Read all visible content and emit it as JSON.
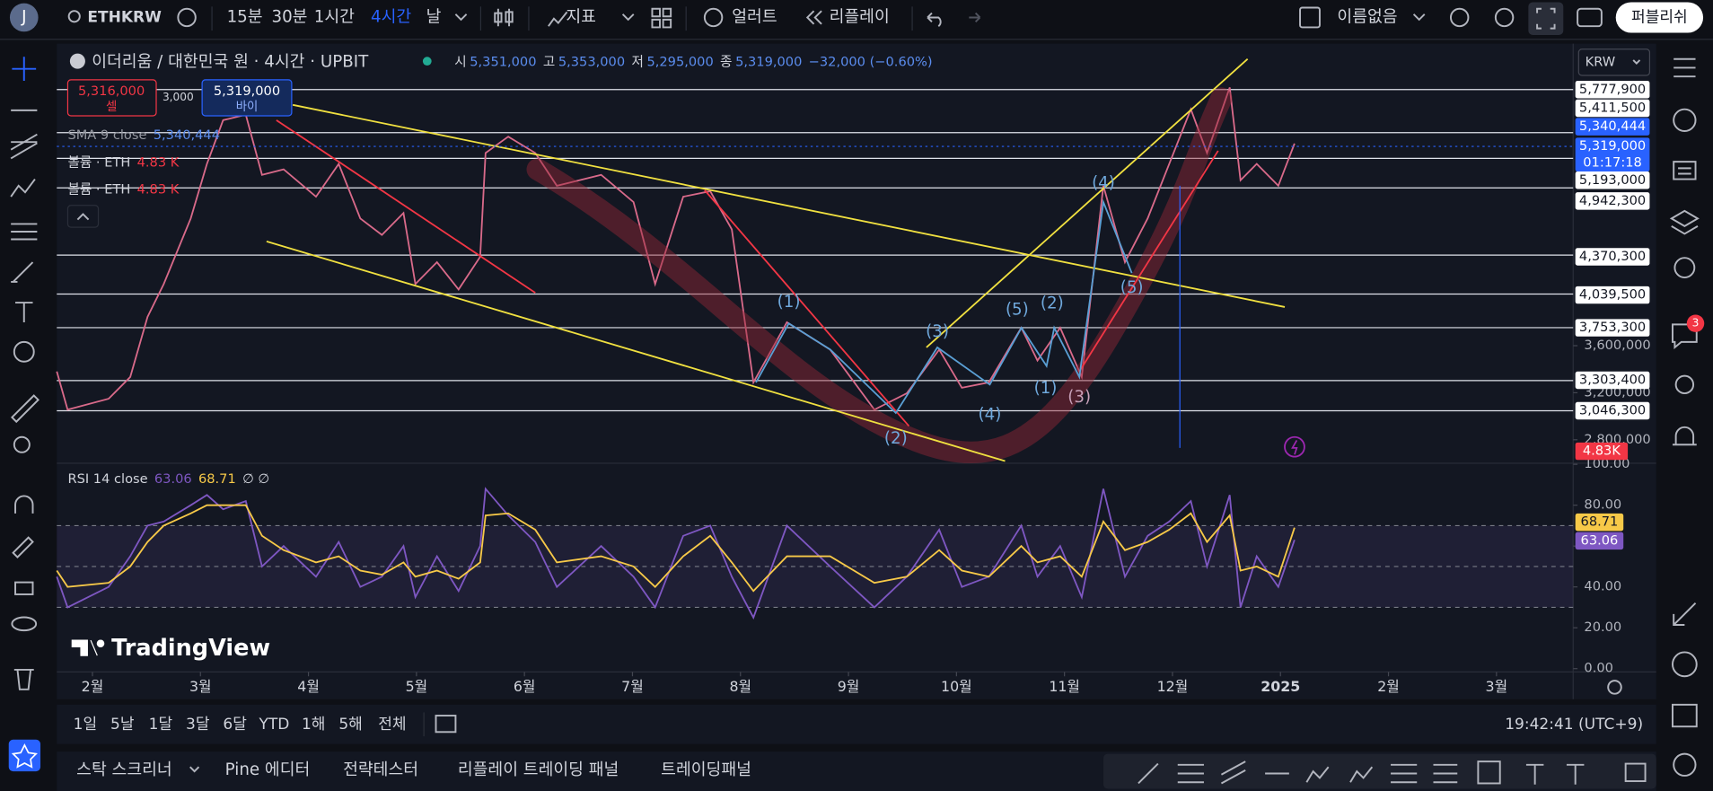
{
  "top_bar": {
    "avatar": "J",
    "symbol": "ETHKRW",
    "intervals": [
      "15분",
      "30분",
      "1시간",
      "4시간",
      "날"
    ],
    "indicators": "지표",
    "alerts": "얼러트",
    "replay": "리플레이",
    "layout_name": "이름없음",
    "publish": "퍼블리쉬"
  },
  "chart_header": {
    "title": "이더리움 / 대한민국 원 · 4시간 · UPBIT",
    "ohlc": [
      {
        "key": "시",
        "value": "5,351,000"
      },
      {
        "key": "고",
        "value": "5,353,000"
      },
      {
        "key": "저",
        "value": "5,295,000"
      },
      {
        "key": "종",
        "value": "5,319,000"
      }
    ],
    "change": "−32,000 (−0.60%)"
  },
  "order": {
    "sell_price": "5,316,000",
    "sell": "셀",
    "quantity": "3,000",
    "buy_price": "5,319,000",
    "buy": "바이"
  },
  "legend": [
    {
      "name": "SMA 9 close",
      "value": "5,340,444"
    },
    {
      "name": "볼륨 · ETH",
      "value": "4.83 K"
    },
    {
      "name": "볼륨 · ETH",
      "value": "4.83 K"
    }
  ],
  "currency": "KRW",
  "price_levels": [
    {
      "value": 5777900,
      "label": "5,777,900"
    },
    {
      "value": 5411500,
      "label": "5,411,500"
    },
    {
      "value": 5193000,
      "label": "5,193,000"
    },
    {
      "value": 4942300,
      "label": "4,942,300"
    },
    {
      "value": 4370300,
      "label": "4,370,300"
    },
    {
      "value": 4039500,
      "label": "4,039,500"
    },
    {
      "value": 3753300,
      "label": "3,753,300"
    },
    {
      "value": 3303400,
      "label": "3,303,400"
    },
    {
      "value": 3046300,
      "label": "3,046,300"
    }
  ],
  "scale_badges": {
    "sma": "5,340,444",
    "last_price": "5,319,000",
    "countdown": "01:17:18",
    "volume": "4.83K",
    "rsi": "63.06",
    "rsi_ma": "68.71"
  },
  "wave_labels": [
    "(1)",
    "(2)",
    "(3)",
    "(4)",
    "(5)",
    "(1)",
    "(2)",
    "(3)",
    "(4)",
    "(5)"
  ],
  "rsi_header": {
    "name": "RSI 14 close",
    "values": [
      "63.06",
      "68.71"
    ],
    "extra": "∅ ∅"
  },
  "logo": "TradingView",
  "chart_data": [
    {
      "type": "line",
      "x": [
        -0.33,
        -0.23,
        0.15,
        0.35,
        0.51,
        0.66,
        0.91,
        1.06,
        1.21,
        1.42,
        1.57,
        1.77,
        2.07,
        2.28,
        2.48,
        2.68,
        2.88,
        2.99,
        3.19,
        3.39,
        3.59,
        3.64,
        3.85,
        4.1,
        4.3,
        4.71,
        5.01,
        5.21,
        5.47,
        5.72,
        5.92,
        6.12,
        6.43,
        6.83,
        7.24,
        7.54,
        7.84,
        8.05,
        8.3,
        8.6,
        8.75,
        8.96,
        9.16,
        9.36,
        9.56,
        9.77,
        9.97,
        10.17,
        10.32,
        10.53,
        10.63,
        10.78,
        10.98,
        11.13
      ],
      "series": [
        {
          "name": "ETHKRW",
          "color": "#d96a8a",
          "values": [
            3381000,
            3056000,
            3149000,
            3334000,
            3845000,
            4124000,
            4682000,
            5146000,
            5518000,
            5564000,
            5053000,
            5100000,
            4867000,
            5146000,
            4682000,
            4542000,
            4728000,
            4124000,
            4310000,
            4078000,
            4356000,
            5239000,
            5378000,
            5239000,
            4960000,
            5053000,
            4821000,
            4124000,
            4867000,
            4914000,
            4589000,
            3288000,
            3799000,
            3567000,
            3056000,
            3195000,
            3567000,
            3242000,
            3288000,
            3753000,
            3474000,
            3753000,
            3334000,
            4960000,
            4310000,
            4682000,
            5146000,
            5611000,
            5239000,
            5796000,
            5007000,
            5146000,
            4960000,
            5319000
          ]
        }
      ],
      "xlim": [
        -0.33,
        13.71
      ],
      "xticks": [
        {
          "value": 0,
          "label": "2월"
        },
        {
          "value": 1,
          "label": "3월"
        },
        {
          "value": 2,
          "label": "4월"
        },
        {
          "value": 3,
          "label": "5월"
        },
        {
          "value": 4,
          "label": "6월"
        },
        {
          "value": 5,
          "label": "7월"
        },
        {
          "value": 6,
          "label": "8월"
        },
        {
          "value": 7,
          "label": "9월"
        },
        {
          "value": 8,
          "label": "10월"
        },
        {
          "value": 9,
          "label": "11월"
        },
        {
          "value": 10,
          "label": "12월"
        },
        {
          "value": 11,
          "label": "2025"
        },
        {
          "value": 12,
          "label": "2월"
        },
        {
          "value": 13,
          "label": "3월"
        }
      ],
      "ylim": [
        2609700,
        6168100
      ],
      "yticks": [
        {
          "value": 3600000,
          "label": "3,600,000"
        },
        {
          "value": 3200000,
          "label": "3,200,000"
        },
        {
          "value": 2800000,
          "label": "2,800,000"
        }
      ]
    },
    {
      "type": "line",
      "x": [
        -0.33,
        -0.23,
        0.15,
        0.35,
        0.51,
        0.66,
        0.91,
        1.06,
        1.21,
        1.42,
        1.57,
        1.77,
        2.07,
        2.28,
        2.48,
        2.68,
        2.88,
        2.99,
        3.19,
        3.39,
        3.59,
        3.64,
        3.85,
        4.1,
        4.3,
        4.71,
        5.01,
        5.21,
        5.47,
        5.72,
        5.92,
        6.12,
        6.43,
        6.83,
        7.24,
        7.54,
        7.84,
        8.05,
        8.3,
        8.6,
        8.75,
        8.96,
        9.16,
        9.36,
        9.56,
        9.77,
        9.97,
        10.17,
        10.32,
        10.53,
        10.63,
        10.78,
        10.98,
        11.13
      ],
      "series": [
        {
          "color": "#7e57c2",
          "values": [
            45,
            30,
            40,
            55,
            70,
            72,
            80,
            85,
            78,
            82,
            50,
            60,
            45,
            62,
            40,
            45,
            60,
            35,
            55,
            38,
            60,
            88,
            75,
            62,
            40,
            60,
            45,
            30,
            65,
            70,
            45,
            25,
            70,
            50,
            30,
            45,
            68,
            40,
            45,
            70,
            45,
            60,
            35,
            88,
            45,
            65,
            72,
            82,
            50,
            85,
            30,
            55,
            40,
            63
          ]
        },
        {
          "color": "#f7c948",
          "values": [
            48,
            40,
            42,
            50,
            62,
            70,
            76,
            80,
            80,
            80,
            65,
            58,
            52,
            55,
            48,
            46,
            52,
            45,
            48,
            44,
            52,
            75,
            76,
            68,
            52,
            55,
            50,
            40,
            55,
            65,
            52,
            38,
            55,
            55,
            42,
            45,
            58,
            48,
            45,
            60,
            52,
            55,
            45,
            72,
            58,
            62,
            68,
            76,
            62,
            75,
            48,
            50,
            45,
            69
          ]
        }
      ],
      "xlim": [
        -0.33,
        13.71
      ],
      "ylim": [
        0,
        100
      ],
      "bands": [
        70,
        50,
        30
      ],
      "yticks": [
        {
          "value": 100,
          "label": "100.00"
        },
        {
          "value": 80,
          "label": "80.00"
        },
        {
          "value": 60,
          "label": "60.00"
        },
        {
          "value": 40,
          "label": "40.00"
        },
        {
          "value": 20,
          "label": "20.00"
        },
        {
          "value": 0,
          "label": "0.00"
        }
      ]
    }
  ],
  "range_bar": {
    "ranges": [
      "1일",
      "5날",
      "1달",
      "3달",
      "6달",
      "YTD",
      "1해",
      "5해",
      "전체"
    ],
    "clock": "19:42:41 (UTC+9)"
  },
  "bottom_tabs": [
    "스탁 스크리너",
    "Pine 에디터",
    "전략테스터",
    "리플레이 트레이딩 패널",
    "트레이딩패널"
  ],
  "notification_count": "3"
}
